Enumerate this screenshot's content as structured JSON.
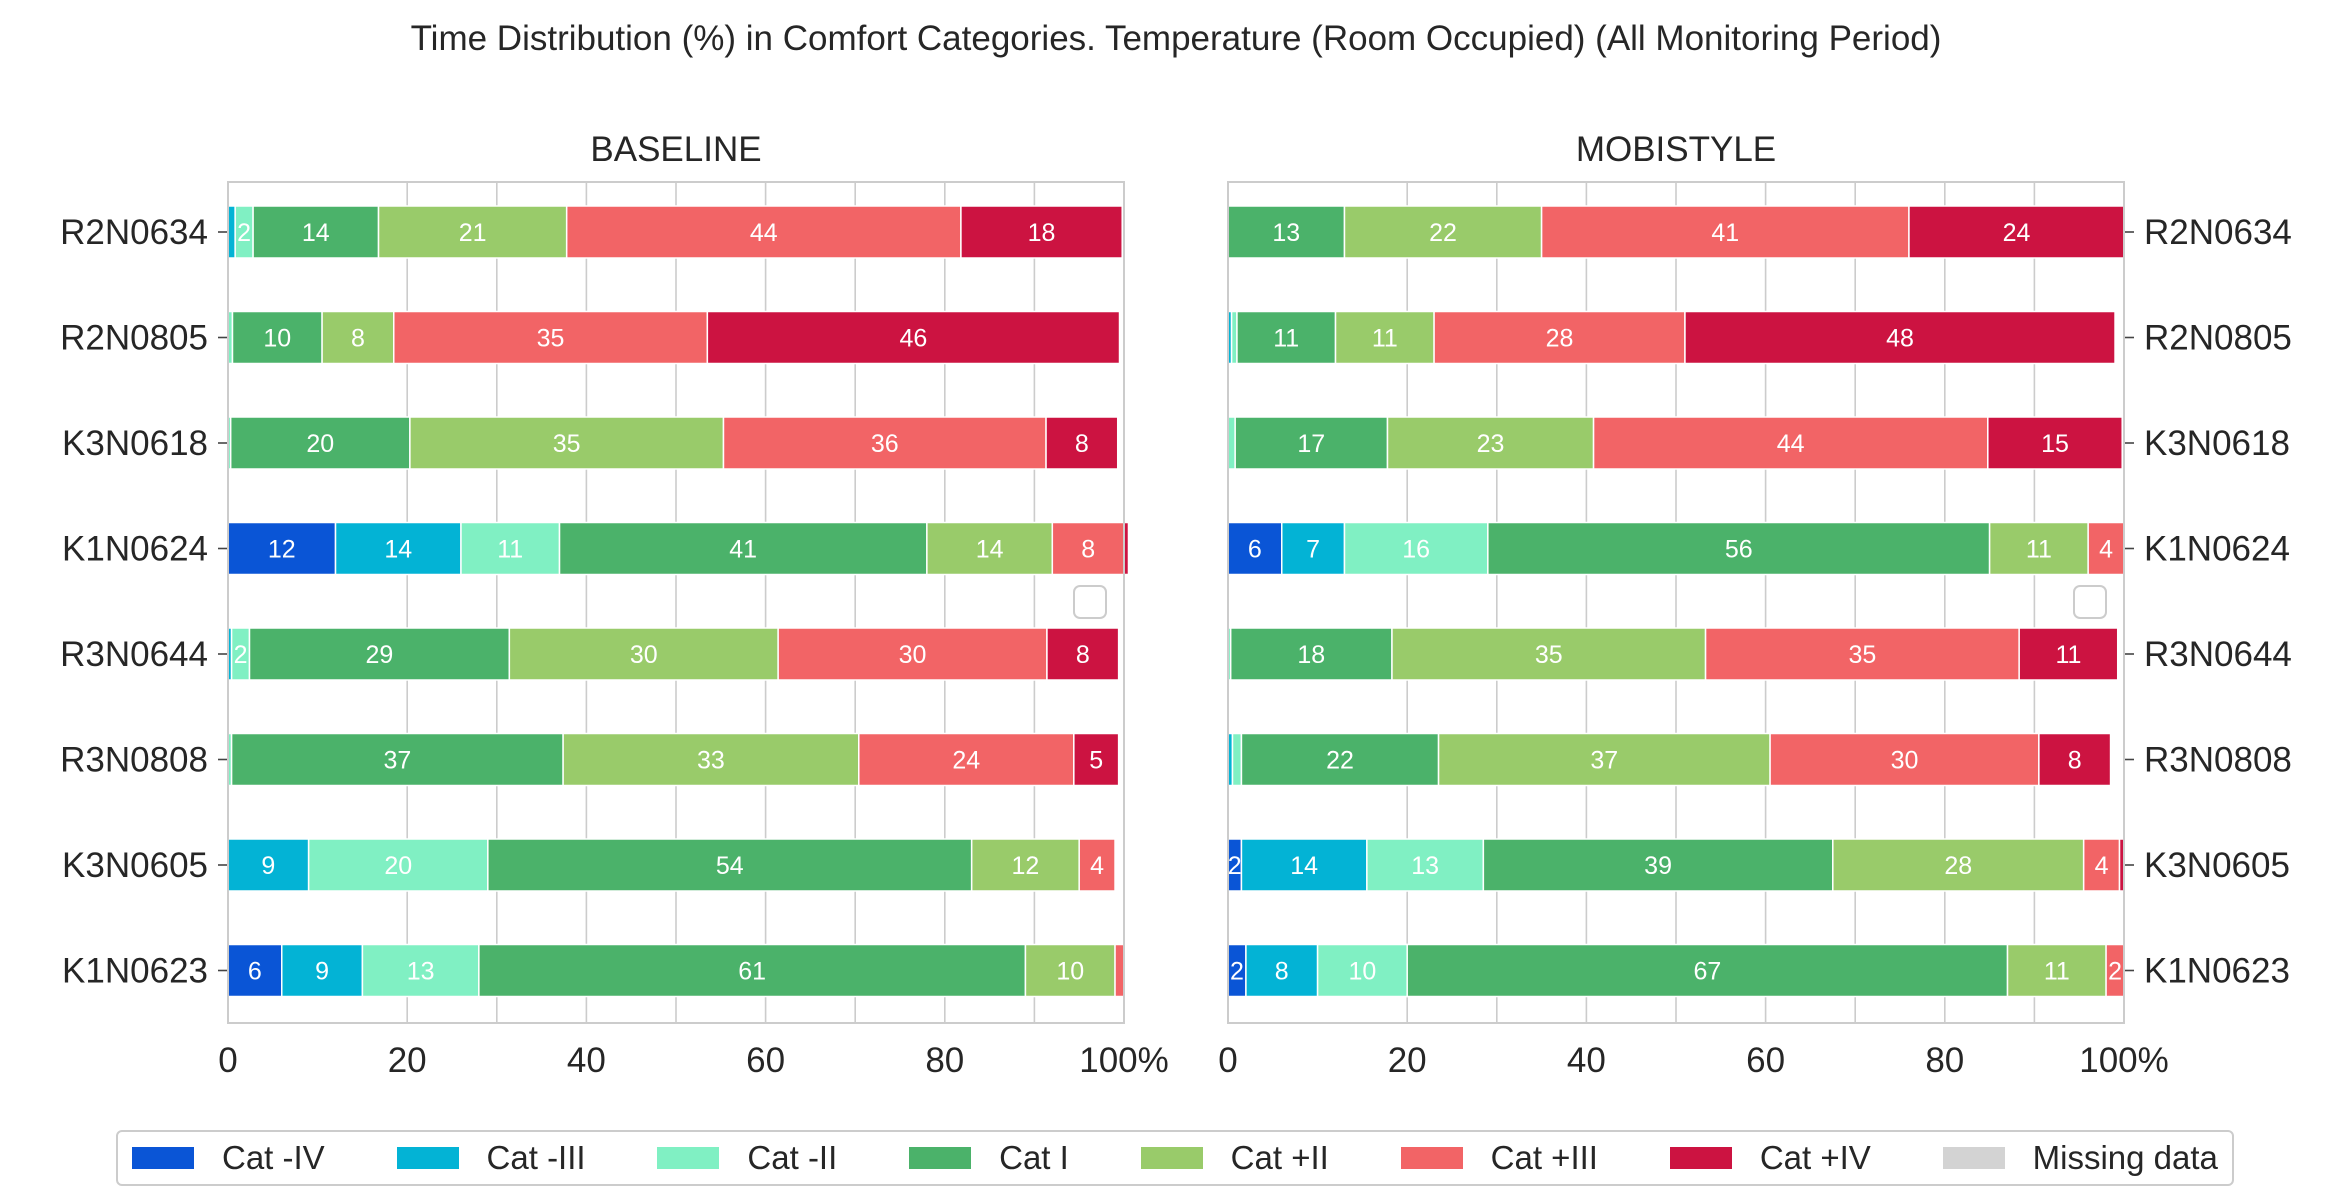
{
  "chart_data": {
    "type": "bar",
    "orientation": "horizontal",
    "stacked": true,
    "title": "Time Distribution (%) in Comfort Categories. Temperature (Room Occupied) (All Monitoring Period)",
    "x_ticks": [
      "0",
      "20",
      "40",
      "60",
      "80",
      "100%"
    ],
    "xlim": [
      0,
      100
    ],
    "grid": true,
    "legend_placement": "bottom",
    "series": [
      {
        "name": "Cat -IV",
        "color": "#0a55d6"
      },
      {
        "name": "Cat -III",
        "color": "#03b3d5"
      },
      {
        "name": "Cat -II",
        "color": "#80f0c3"
      },
      {
        "name": "Cat I",
        "color": "#4bb26a"
      },
      {
        "name": "Cat +II",
        "color": "#99cb6a"
      },
      {
        "name": "Cat +III",
        "color": "#f26466"
      },
      {
        "name": "Cat +IV",
        "color": "#cc1341"
      },
      {
        "name": "Missing data",
        "color": "#d3d3d3"
      }
    ],
    "panels": [
      {
        "title": "BASELINE",
        "label_side": "left",
        "categories": [
          "R2N0634",
          "R2N0805",
          "K3N0618",
          "K1N0624",
          "R3N0644",
          "R3N0808",
          "K3N0605",
          "K1N0623"
        ],
        "values": [
          [
            0,
            0.8,
            2,
            14,
            21,
            44,
            18,
            0
          ],
          [
            0,
            0,
            0.5,
            10,
            8,
            35,
            46,
            0
          ],
          [
            0,
            0,
            0.3,
            20,
            35,
            36,
            8,
            0
          ],
          [
            12,
            14,
            11,
            41,
            14,
            8,
            0.5,
            0
          ],
          [
            0,
            0.4,
            2,
            29,
            30,
            30,
            8,
            0
          ],
          [
            0,
            0,
            0.4,
            37,
            33,
            24,
            5,
            0
          ],
          [
            0,
            9,
            20,
            54,
            12,
            4,
            0,
            0
          ],
          [
            6,
            9,
            13,
            61,
            10,
            1,
            0,
            0
          ]
        ],
        "labels": [
          [
            "",
            "",
            "2",
            "14",
            "21",
            "44",
            "18",
            ""
          ],
          [
            "",
            "",
            "",
            "10",
            "8",
            "35",
            "46",
            ""
          ],
          [
            "",
            "",
            "",
            "20",
            "35",
            "36",
            "8",
            ""
          ],
          [
            "12",
            "14",
            "11",
            "41",
            "14",
            "8",
            "",
            ""
          ],
          [
            "",
            "",
            "2",
            "29",
            "30",
            "30",
            "8",
            ""
          ],
          [
            "",
            "",
            "",
            "37",
            "33",
            "24",
            "5",
            ""
          ],
          [
            "",
            "9",
            "20",
            "54",
            "12",
            "4",
            "",
            ""
          ],
          [
            "6",
            "9",
            "13",
            "61",
            "10",
            "",
            "",
            ""
          ]
        ]
      },
      {
        "title": "MOBISTYLE",
        "label_side": "right",
        "categories": [
          "R2N0634",
          "R2N0805",
          "K3N0618",
          "K1N0624",
          "R3N0644",
          "R3N0808",
          "K3N0605",
          "K1N0623"
        ],
        "values": [
          [
            0,
            0,
            0,
            13,
            22,
            41,
            24,
            0
          ],
          [
            0,
            0.4,
            0.6,
            11,
            11,
            28,
            48,
            0
          ],
          [
            0,
            0,
            0.8,
            17,
            23,
            44,
            15,
            0
          ],
          [
            6,
            7,
            16,
            56,
            11,
            4,
            0,
            0
          ],
          [
            0,
            0,
            0.3,
            18,
            35,
            35,
            11,
            0
          ],
          [
            0,
            0.5,
            1,
            22,
            37,
            30,
            8,
            0
          ],
          [
            1.5,
            14,
            13,
            39,
            28,
            4,
            0.5,
            0
          ],
          [
            2,
            8,
            10,
            67,
            11,
            2,
            0,
            0
          ]
        ],
        "labels": [
          [
            "",
            "",
            "",
            "13",
            "22",
            "41",
            "24",
            ""
          ],
          [
            "",
            "",
            "",
            "11",
            "11",
            "28",
            "48",
            ""
          ],
          [
            "",
            "",
            "",
            "17",
            "23",
            "44",
            "15",
            ""
          ],
          [
            "6",
            "7",
            "16",
            "56",
            "11",
            "4",
            "",
            ""
          ],
          [
            "",
            "",
            "",
            "18",
            "35",
            "35",
            "11",
            ""
          ],
          [
            "",
            "",
            "",
            "22",
            "37",
            "30",
            "8",
            ""
          ],
          [
            "2",
            "14",
            "13",
            "39",
            "28",
            "4",
            "",
            ""
          ],
          [
            "2",
            "8",
            "10",
            "67",
            "11",
            "2",
            "",
            ""
          ]
        ]
      }
    ]
  }
}
